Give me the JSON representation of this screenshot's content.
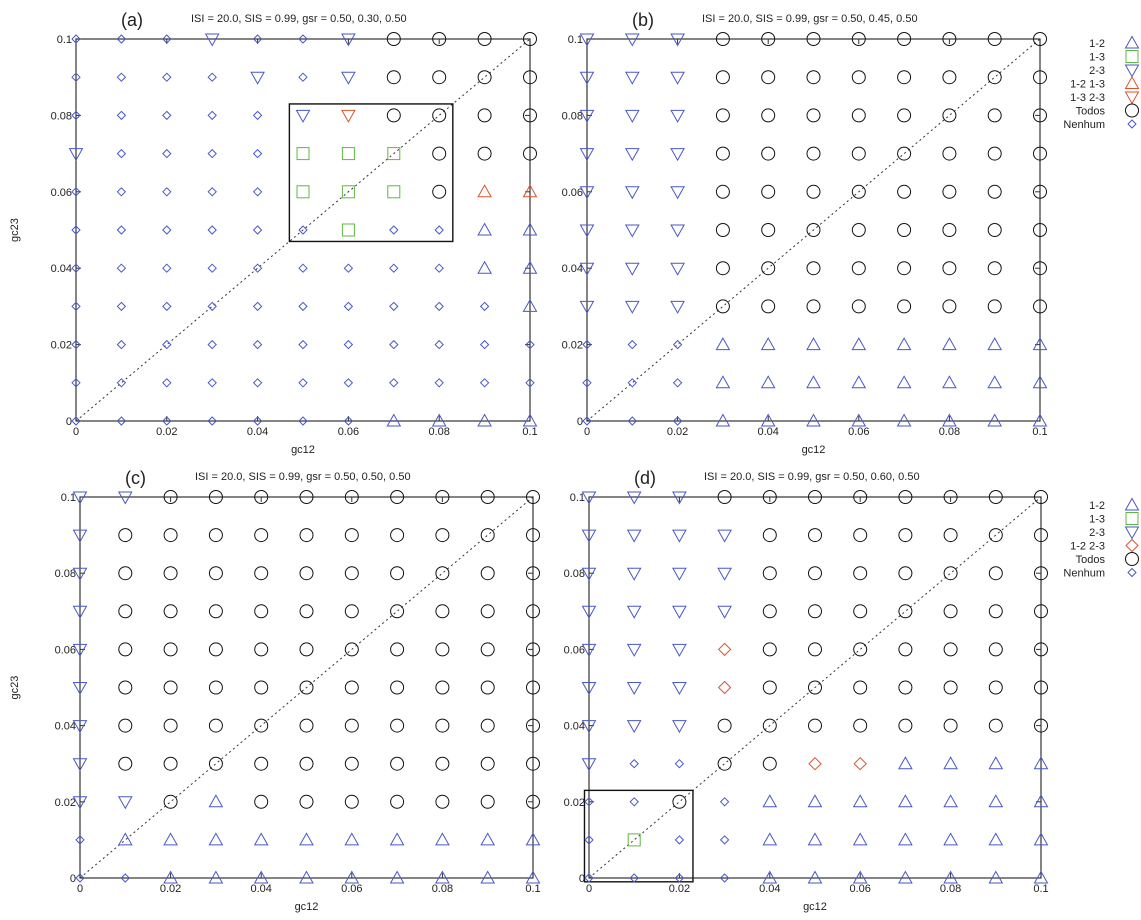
{
  "chart_data": [
    {
      "type": "scatter",
      "panel_label": "(a)",
      "title": "ISI = 20.0, SIS = 0.99,  gsr = 0.50, 0.30, 0.50",
      "xlabel": "gc12",
      "ylabel": "gc23",
      "xlim": [
        0,
        0.1
      ],
      "ylim": [
        0,
        0.1
      ],
      "xticks": [
        "0",
        "0.02",
        "0.04",
        "0.06",
        "0.08",
        "0.1"
      ],
      "yticks": [
        "0",
        "0.02",
        "0.04",
        "0.06",
        "0.08",
        "0.1"
      ],
      "diagonal": true,
      "grid": false,
      "highlight_box": {
        "x": [
          0.047,
          0.083
        ],
        "y": [
          0.047,
          0.083
        ]
      },
      "legend": [
        {
          "label": "1-2",
          "marker": "triangle-up",
          "color": "#4a57c9"
        },
        {
          "label": "1-3",
          "marker": "square",
          "color": "#5fb83f"
        },
        {
          "label": "2-3",
          "marker": "triangle-down",
          "color": "#4a57c9"
        },
        {
          "label": "1-2  1-3",
          "marker": "triangle-up",
          "color": "#e0522a"
        },
        {
          "label": "1-3  2-3",
          "marker": "triangle-down",
          "color": "#e0522a"
        },
        {
          "label": "Todos",
          "marker": "circle",
          "color": "#111111"
        },
        {
          "label": "Nenhum",
          "marker": "diamond",
          "color": "#4a57c9"
        }
      ],
      "legend_position": "right",
      "grid_rows": [
        "DDDVDDVOOOO",
        "DDDDVDVOOOO",
        "DDDDDVTOOOO",
        "VDDDDSSSOOO",
        "DDDDDSSSORR",
        "DDDDDDSDDUU",
        "DDDDDDDDDUU",
        "DDDDDDDDDDU",
        "DDDDDDDDDDD",
        "DDDDDDDDDDD",
        "DDDDDDDUUUU"
      ]
    },
    {
      "type": "scatter",
      "panel_label": "(b)",
      "title": "ISI = 20.0, SIS = 0.99,  gsr = 0.50, 0.45, 0.50",
      "xlabel": "gc12",
      "ylabel": "",
      "xlim": [
        0,
        0.1
      ],
      "ylim": [
        0,
        0.1
      ],
      "xticks": [
        "0",
        "0.02",
        "0.04",
        "0.06",
        "0.08",
        "0.1"
      ],
      "yticks": [
        "0",
        "0.02",
        "0.04",
        "0.06",
        "0.08",
        "0.1"
      ],
      "diagonal": true,
      "grid": false,
      "grid_rows": [
        "VVVOOOOOOOO",
        "VVVOOOOOOOO",
        "VVVOOOOOOOO",
        "VVVOOOOOOOO",
        "VVVOOOOOOOO",
        "VVVOOOOOOOO",
        "VVVOOOOOOOO",
        "VVVOOOOOOOO",
        "DDDUUUUUUUU",
        "DDDUUUUUUUU",
        "DDDUUUUUUUU"
      ]
    },
    {
      "type": "scatter",
      "panel_label": "(c)",
      "title": "ISI = 20.0, SIS = 0.99,  gsr = 0.50, 0.50, 0.50",
      "xlabel": "gc12",
      "ylabel": "gc23",
      "xlim": [
        0,
        0.1
      ],
      "ylim": [
        0,
        0.1
      ],
      "xticks": [
        "0",
        "0.02",
        "0.04",
        "0.06",
        "0.08",
        "0.1"
      ],
      "yticks": [
        "0",
        "0.02",
        "0.04",
        "0.06",
        "0.08",
        "0.1"
      ],
      "diagonal": true,
      "grid": false,
      "grid_rows": [
        "VVOOOOOOOOO",
        "VOOOOOOOOOO",
        "VOOOOOOOOOO",
        "VOOOOOOOOOO",
        "VOOOOOOOOOO",
        "VOOOOOOOOOO",
        "VOOOOOOOOOO",
        "VOOOOOOOOOO",
        "VVOUOOOOOOO",
        "DUUUUUUUUUU",
        "DDUUUUUUUUU"
      ]
    },
    {
      "type": "scatter",
      "panel_label": "(d)",
      "title": "ISI = 20.0, SIS = 0.99,  gsr = 0.50, 0.60, 0.50",
      "xlabel": "gc12",
      "ylabel": "",
      "xlim": [
        0,
        0.1
      ],
      "ylim": [
        0,
        0.1
      ],
      "xticks": [
        "0",
        "0.02",
        "0.04",
        "0.06",
        "0.08",
        "0.1"
      ],
      "yticks": [
        "0",
        "0.02",
        "0.04",
        "0.06",
        "0.08",
        "0.1"
      ],
      "diagonal": true,
      "grid": false,
      "highlight_box": {
        "x": [
          -0.001,
          0.023
        ],
        "y": [
          -0.001,
          0.023
        ]
      },
      "legend": [
        {
          "label": "1-2",
          "marker": "triangle-up",
          "color": "#4a57c9"
        },
        {
          "label": "1-3",
          "marker": "square",
          "color": "#5fb83f"
        },
        {
          "label": "2-3",
          "marker": "triangle-down",
          "color": "#4a57c9"
        },
        {
          "label": "1-2  2-3",
          "marker": "diamond",
          "color": "#e0522a"
        },
        {
          "label": "Todos",
          "marker": "circle",
          "color": "#111111"
        },
        {
          "label": "Nenhum",
          "marker": "diamond",
          "color": "#4a57c9"
        }
      ],
      "legend_position": "right",
      "grid_rows": [
        "VVVOOOOOOOO",
        "VVVVOOOOOOO",
        "VVVVOOOOOOO",
        "VVVVOOOOOOO",
        "VVVXOOOOOOO",
        "VVVXOOOOOOO",
        "VVVOOOOOOOO",
        "VDDOOXXUUUU",
        "DDODUUUUUUU",
        "DSDDUUUUUUU",
        "DDDDUUUUUUU"
      ]
    }
  ],
  "marker_key": {
    "U": {
      "marker": "triangle-up",
      "color": "#4a57c9"
    },
    "S": {
      "marker": "square",
      "color": "#5fb83f"
    },
    "V": {
      "marker": "triangle-down",
      "color": "#4a57c9"
    },
    "R": {
      "marker": "triangle-up",
      "color": "#e0522a"
    },
    "T": {
      "marker": "triangle-down",
      "color": "#e0522a"
    },
    "X": {
      "marker": "diamond",
      "color": "#e0522a"
    },
    "O": {
      "marker": "circle",
      "color": "#111111"
    },
    "D": {
      "marker": "diamond",
      "color": "#4a57c9"
    }
  }
}
